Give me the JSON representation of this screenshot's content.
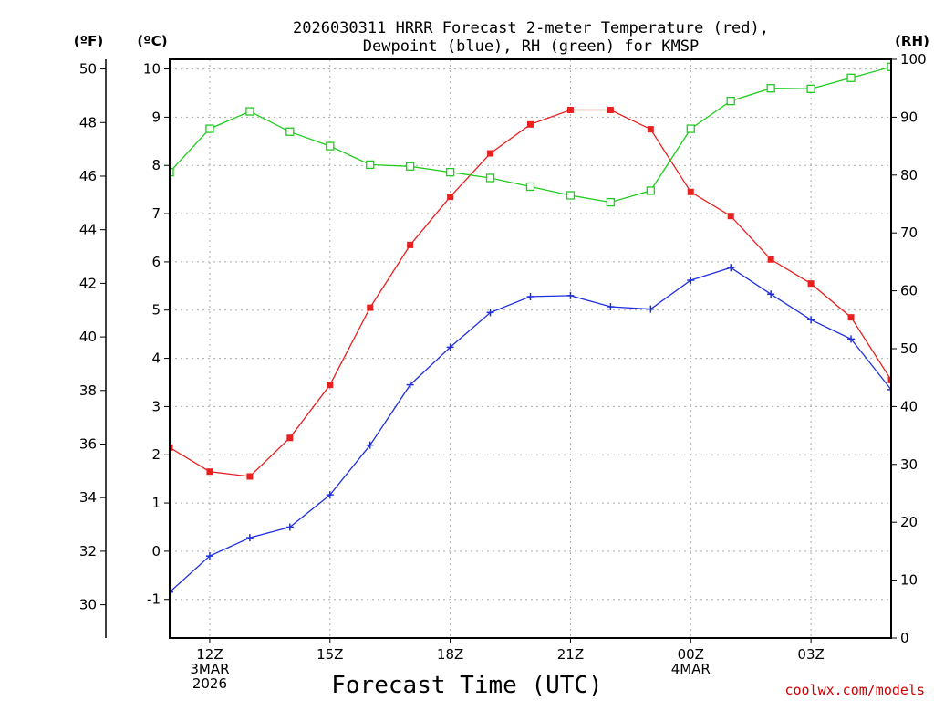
{
  "chart_data": {
    "type": "line",
    "title": [
      "2026030311 HRRR Forecast 2-meter Temperature (red),",
      "Dewpoint (blue), RH (green) for KMSP"
    ],
    "left_unit_f": "(ºF)",
    "left_unit_c": "(ºC)",
    "right_unit": "(RH)",
    "xlabel": "Forecast Time (UTC)",
    "credit": "coolwx.com/models",
    "x_hours": [
      0,
      1,
      2,
      3,
      4,
      5,
      6,
      7,
      8,
      9,
      10,
      11,
      12,
      13,
      14,
      15,
      16,
      17,
      18
    ],
    "xlim": [
      0,
      18
    ],
    "x_ticks": [
      {
        "hour": 1,
        "lines": [
          "12Z",
          "3MAR",
          "2026"
        ]
      },
      {
        "hour": 4,
        "lines": [
          "15Z"
        ]
      },
      {
        "hour": 7,
        "lines": [
          "18Z"
        ]
      },
      {
        "hour": 10,
        "lines": [
          "21Z"
        ]
      },
      {
        "hour": 13,
        "lines": [
          "00Z",
          "4MAR"
        ]
      },
      {
        "hour": 16,
        "lines": [
          "03Z"
        ]
      }
    ],
    "y_celsius": {
      "lim": [
        -1.8,
        10.2
      ],
      "ticks": [
        "-1",
        "0",
        "1",
        "2",
        "3",
        "4",
        "5",
        "6",
        "7",
        "8",
        "9",
        "10"
      ]
    },
    "y_fahrenheit": {
      "ticks": [
        "30",
        "32",
        "34",
        "36",
        "38",
        "40",
        "42",
        "44",
        "46",
        "48",
        "50"
      ]
    },
    "y_rh": {
      "lim": [
        0,
        100
      ],
      "ticks": [
        "0",
        "10",
        "20",
        "30",
        "40",
        "50",
        "60",
        "70",
        "80",
        "90",
        "100"
      ]
    },
    "series": [
      {
        "name": "2-meter Temperature",
        "axis": "celsius",
        "color": "#e82020",
        "marker": "filled-square",
        "values": [
          2.15,
          1.65,
          1.55,
          2.35,
          3.45,
          5.05,
          6.35,
          7.35,
          8.25,
          8.85,
          9.15,
          9.15,
          8.75,
          7.45,
          6.95,
          6.05,
          5.55,
          4.85,
          3.55
        ]
      },
      {
        "name": "Dewpoint",
        "axis": "celsius",
        "color": "#2030e0",
        "marker": "plus",
        "values": [
          -0.85,
          -0.1,
          0.28,
          0.5,
          1.17,
          2.2,
          3.45,
          4.23,
          4.95,
          5.28,
          5.3,
          5.07,
          5.02,
          5.62,
          5.88,
          5.33,
          4.8,
          4.4,
          3.35
        ]
      },
      {
        "name": "RH",
        "axis": "rh",
        "color": "#20cc20",
        "marker": "open-square",
        "values": [
          80.5,
          88,
          91,
          87.5,
          85,
          81.8,
          81.5,
          80.5,
          79.5,
          78,
          76.5,
          75.3,
          77.3,
          88,
          92.8,
          95,
          94.9,
          96.8,
          98.7
        ]
      }
    ]
  }
}
